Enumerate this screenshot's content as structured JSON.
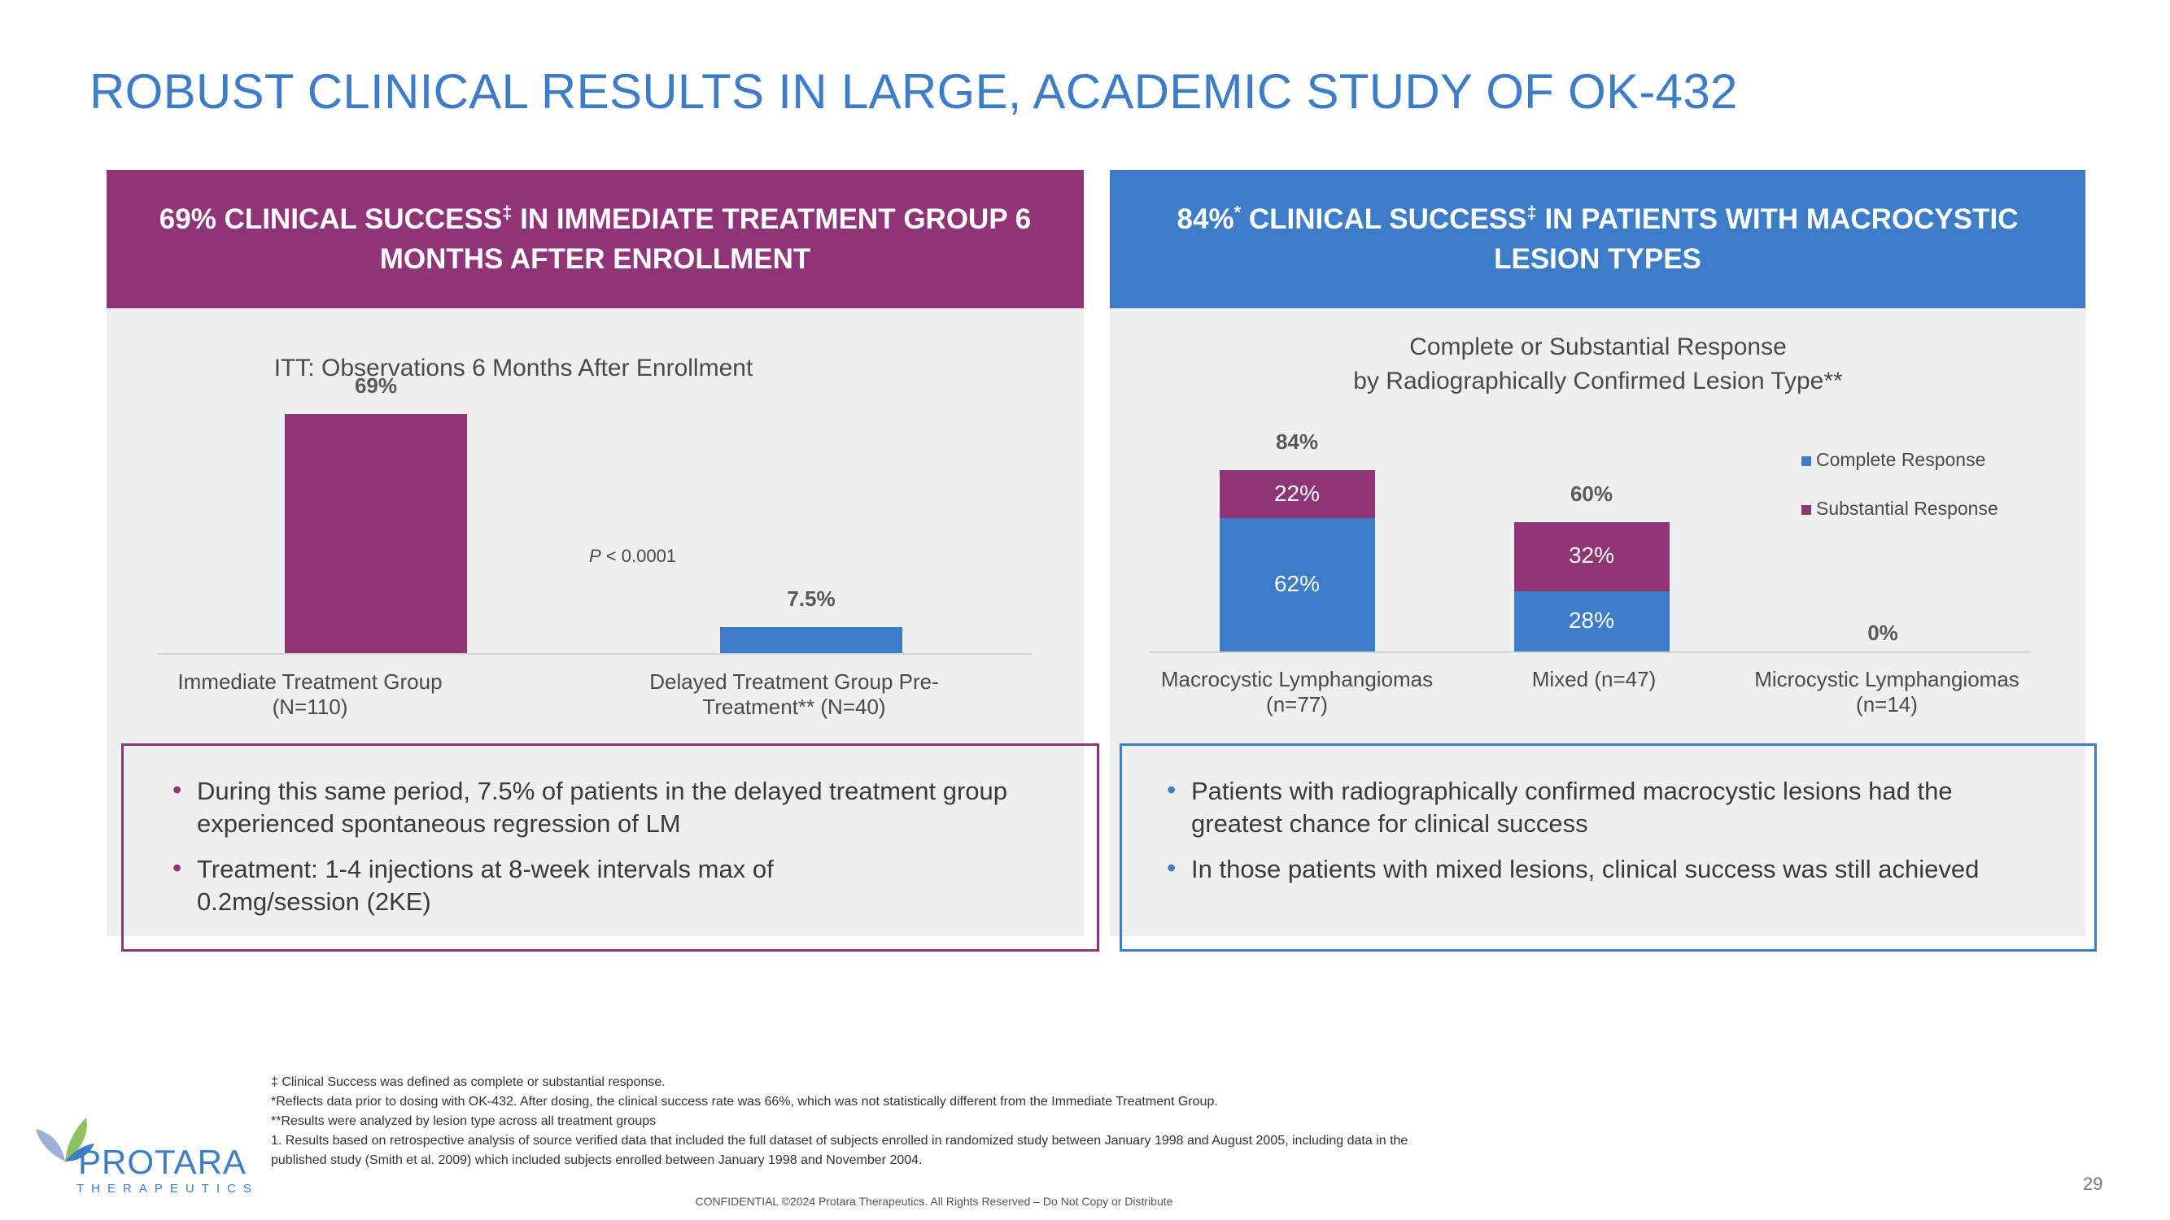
{
  "title": "ROBUST CLINICAL RESULTS IN LARGE, ACADEMIC STUDY OF OK-432",
  "colors": {
    "purple": "#8e3477",
    "blue": "#3d7cc9",
    "panel_bg": "#efefef"
  },
  "left_panel": {
    "header_pre": "69% CLINICAL SUCCESS",
    "header_mark": "‡",
    "header_post": " IN IMMEDIATE TREATMENT GROUP 6 MONTHS AFTER ENROLLMENT",
    "p_value_label": "P",
    "p_value_text": " < 0.0001",
    "bullets": [
      "During this same period, 7.5% of patients in the delayed treatment group experienced spontaneous regression of LM",
      "Treatment: 1-4 injections at 8-week intervals max of 0.2mg/session (2KE)"
    ]
  },
  "right_panel": {
    "header_pre": "84%",
    "header_star": "*",
    "header_mid": " CLINICAL SUCCESS",
    "header_mark": "‡",
    "header_post": " IN PATIENTS WITH MACROCYSTIC LESION TYPES",
    "bullets": [
      "Patients with radiographically confirmed macrocystic lesions had the greatest chance for clinical success",
      "In those patients with mixed lesions, clinical success was still achieved"
    ]
  },
  "chart_data": [
    {
      "type": "bar",
      "title": "ITT: Observations 6 Months After Enrollment",
      "categories": [
        "Immediate Treatment Group (N=110)",
        "Delayed Treatment Group Pre-Treatment** (N=40)"
      ],
      "values": [
        69,
        7.5
      ],
      "value_labels": [
        "69%",
        "7.5%"
      ],
      "ylim": [
        0,
        75
      ],
      "annotation": "P < 0.0001"
    },
    {
      "type": "bar",
      "stacked": true,
      "title_line1": "Complete or Substantial Response",
      "title_line2": "by Radiographically Confirmed Lesion Type**",
      "categories": [
        "Macrocystic Lymphangiomas (n=77)",
        "Mixed (n=47)",
        "Microcystic Lymphangiomas (n=14)"
      ],
      "series": [
        {
          "name": "Complete Response",
          "values": [
            62,
            28,
            0
          ],
          "labels": [
            "62%",
            "28%",
            ""
          ]
        },
        {
          "name": "Substantial Response",
          "values": [
            22,
            32,
            0
          ],
          "labels": [
            "22%",
            "32%",
            ""
          ]
        }
      ],
      "totals": [
        "84%",
        "60%",
        "0%"
      ],
      "ylim": [
        0,
        100
      ],
      "legend_position": "top-right"
    }
  ],
  "footnotes": [
    "‡ Clinical Success was defined as complete or substantial response.",
    "*Reflects data prior to dosing with OK-432.  After dosing, the clinical success rate was 66%, which was not statistically different from the Immediate Treatment Group.",
    "**Results were analyzed by lesion type across all treatment groups",
    "1. Results based on retrospective analysis of source verified data that included the full dataset of subjects enrolled in randomized study between January 1998 and August 2005, including data in the",
    "published study (Smith et al. 2009) which included subjects enrolled between January 1998 and November 2004."
  ],
  "confidential": "CONFIDENTIAL ©2024 Protara Therapeutics. All Rights Reserved – Do Not Copy or Distribute",
  "page_number": "29",
  "logo": {
    "name": "PROTARA",
    "sub": "THERAPEUTICS"
  }
}
